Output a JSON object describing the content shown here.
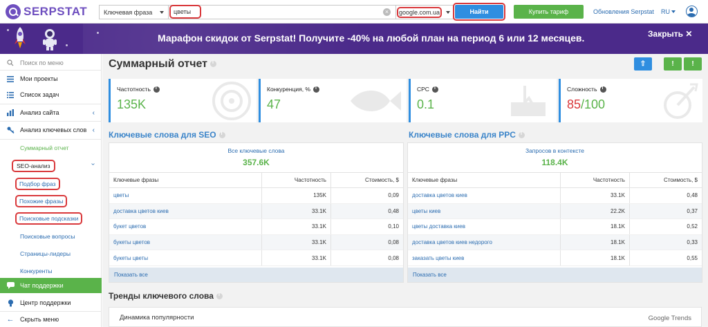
{
  "brand": {
    "name": "SERPSTAT"
  },
  "search": {
    "type_label": "Ключевая фраза",
    "query": "цветы",
    "database": "google.com.ua",
    "find_label": "Найти"
  },
  "header": {
    "buy_label": "Купить тариф",
    "updates_label": "Обновления Serpstat",
    "lang": "RU"
  },
  "banner": {
    "text": "Марафон скидок от Serpstat! Получите -40% на любой план на период 6 или 12 месяцев.",
    "close_label": "Закрыть ✕"
  },
  "sidebar": {
    "search_placeholder": "Поиск по меню",
    "items": [
      {
        "label": "Мои проекты",
        "icon": "list-icon"
      },
      {
        "label": "Список задач",
        "icon": "tasks-icon"
      },
      {
        "label": "Анализ сайта",
        "icon": "bar-chart-icon"
      },
      {
        "label": "Анализ ключевых слов",
        "icon": "key-icon"
      }
    ],
    "sub_items": [
      {
        "label": "Суммарный отчет"
      },
      {
        "label": "SEO-анализ"
      },
      {
        "label": "Подбор фраз"
      },
      {
        "label": "Похожие фразы"
      },
      {
        "label": "Поисковые подсказки"
      },
      {
        "label": "Поисковые вопросы"
      },
      {
        "label": "Страницы-лидеры"
      },
      {
        "label": "Конкуренты"
      }
    ],
    "chat_label": "Чат поддержки",
    "support_label": "Центр поддержки",
    "hide_label": "Скрыть меню"
  },
  "main": {
    "title": "Суммарный отчет",
    "kpis": [
      {
        "label": "Частотность",
        "value": "135K",
        "color": "#5ab34a"
      },
      {
        "label": "Конкуренция, %",
        "value": "47",
        "color": "#5ab34a"
      },
      {
        "label": "CPC",
        "value": "0.1",
        "color": "#5ab34a"
      },
      {
        "label": "Сложность",
        "value": "85",
        "suffix": "/100",
        "color": "#d9383b"
      }
    ],
    "seo": {
      "title": "Ключевые слова для SEO",
      "head_label": "Все ключевые слова",
      "head_value": "357.6K",
      "columns": [
        "Ключевые фразы",
        "Частотность",
        "Стоимость, $"
      ],
      "rows": [
        [
          "цветы",
          "135K",
          "0,09"
        ],
        [
          "доставка цветов киев",
          "33.1K",
          "0,48"
        ],
        [
          "букет цветов",
          "33.1K",
          "0,10"
        ],
        [
          "букеты цветов",
          "33.1K",
          "0,08"
        ],
        [
          "букеты цветы",
          "33.1K",
          "0,08"
        ]
      ],
      "show_all": "Показать все"
    },
    "ppc": {
      "title": "Ключевые слова для PPC",
      "head_label": "Запросов в контексте",
      "head_value": "118.4K",
      "columns": [
        "Ключевые фразы",
        "Частотность",
        "Стоимость, $"
      ],
      "rows": [
        [
          "доставка цветов киев",
          "33.1K",
          "0,48"
        ],
        [
          "цветы киев",
          "22.2K",
          "0,37"
        ],
        [
          "цветы доставка киев",
          "18.1K",
          "0,52"
        ],
        [
          "доставка цветов киев недорого",
          "18.1K",
          "0,33"
        ],
        [
          "заказать цветы киев",
          "18.1K",
          "0,55"
        ]
      ],
      "show_all": "Показать все"
    },
    "trends": {
      "title": "Тренды ключевого слова",
      "subtitle": "Динамика популярности",
      "logo": "Google Trends"
    }
  }
}
